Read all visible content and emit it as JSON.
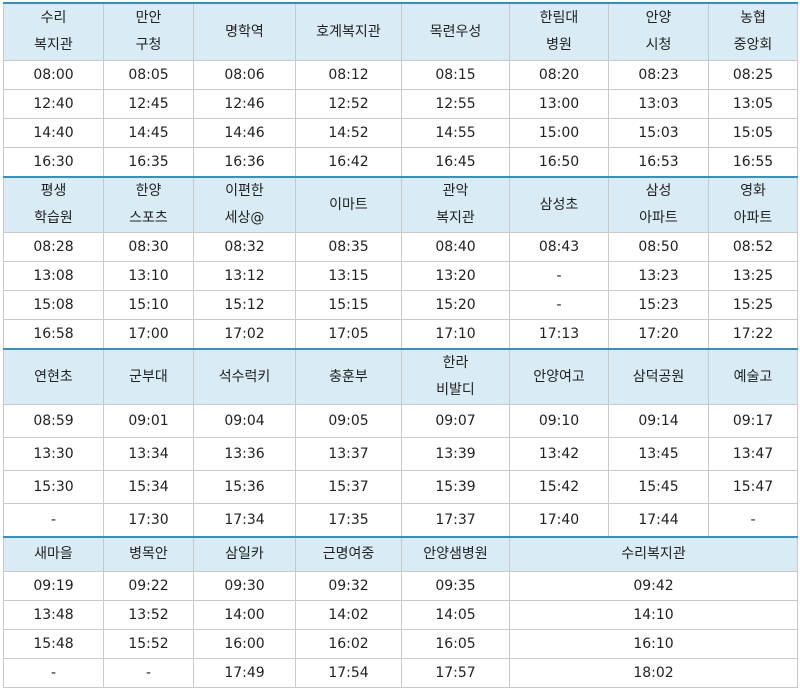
{
  "sections": [
    {
      "headers": [
        "수리\n복지관",
        "만안\n구청",
        "명학역",
        "호계복지관",
        "목련우성",
        "한림대\n병원",
        "안양\n시청",
        "농협\n중앙회"
      ],
      "rows": [
        [
          "08:00",
          "08:05",
          "08:06",
          "08:12",
          "08:15",
          "08:20",
          "08:23",
          "08:25"
        ],
        [
          "12:40",
          "12:45",
          "12:46",
          "12:52",
          "12:55",
          "13:00",
          "13:03",
          "13:05"
        ],
        [
          "14:40",
          "14:45",
          "14:46",
          "14:52",
          "14:55",
          "15:00",
          "15:03",
          "15:05"
        ],
        [
          "16:30",
          "16:35",
          "16:36",
          "16:42",
          "16:45",
          "16:50",
          "16:53",
          "16:55"
        ]
      ]
    },
    {
      "headers": [
        "평생\n학습원",
        "한양\n스포츠",
        "이편한\n세상@",
        "이마트",
        "관악\n복지관",
        "삼성초",
        "삼성\n아파트",
        "영화\n아파트"
      ],
      "rows": [
        [
          "08:28",
          "08:30",
          "08:32",
          "08:35",
          "08:40",
          "08:43",
          "08:50",
          "08:52"
        ],
        [
          "13:08",
          "13:10",
          "13:12",
          "13:15",
          "13:20",
          "-",
          "13:23",
          "13:25"
        ],
        [
          "15:08",
          "15:10",
          "15:12",
          "15:15",
          "15:20",
          "-",
          "15:23",
          "15:25"
        ],
        [
          "16:58",
          "17:00",
          "17:02",
          "17:05",
          "17:10",
          "17:13",
          "17:20",
          "17:22"
        ]
      ]
    },
    {
      "headers": [
        "연현초",
        "군부대",
        "석수럭키",
        "충훈부",
        "한라\n비발디",
        "안양여고",
        "삼덕공원",
        "예술고"
      ],
      "rows": [
        [
          "08:59",
          "09:01",
          "09:04",
          "09:05",
          "09:07",
          "09:10",
          "09:14",
          "09:17"
        ],
        [
          "13:30",
          "13:34",
          "13:36",
          "13:37",
          "13:39",
          "13:42",
          "13:45",
          "13:47"
        ],
        [
          "15:30",
          "15:34",
          "15:36",
          "15:37",
          "15:39",
          "15:42",
          "15:45",
          "15:47"
        ],
        [
          "-",
          "17:30",
          "17:34",
          "17:35",
          "17:37",
          "17:40",
          "17:44",
          "-"
        ]
      ]
    },
    {
      "headers": [
        "새마을",
        "병목안",
        "삼일카",
        "근명여중",
        "안양샘병원",
        "수리복지관"
      ],
      "rows": [
        [
          "09:19",
          "09:22",
          "09:30",
          "09:32",
          "09:35",
          "09:42"
        ],
        [
          "13:48",
          "13:52",
          "14:00",
          "14:02",
          "14:05",
          "14:10"
        ],
        [
          "15:48",
          "15:52",
          "16:00",
          "16:02",
          "16:05",
          "16:10"
        ],
        [
          "-",
          "-",
          "17:49",
          "17:54",
          "17:57",
          "18:02"
        ]
      ]
    }
  ]
}
